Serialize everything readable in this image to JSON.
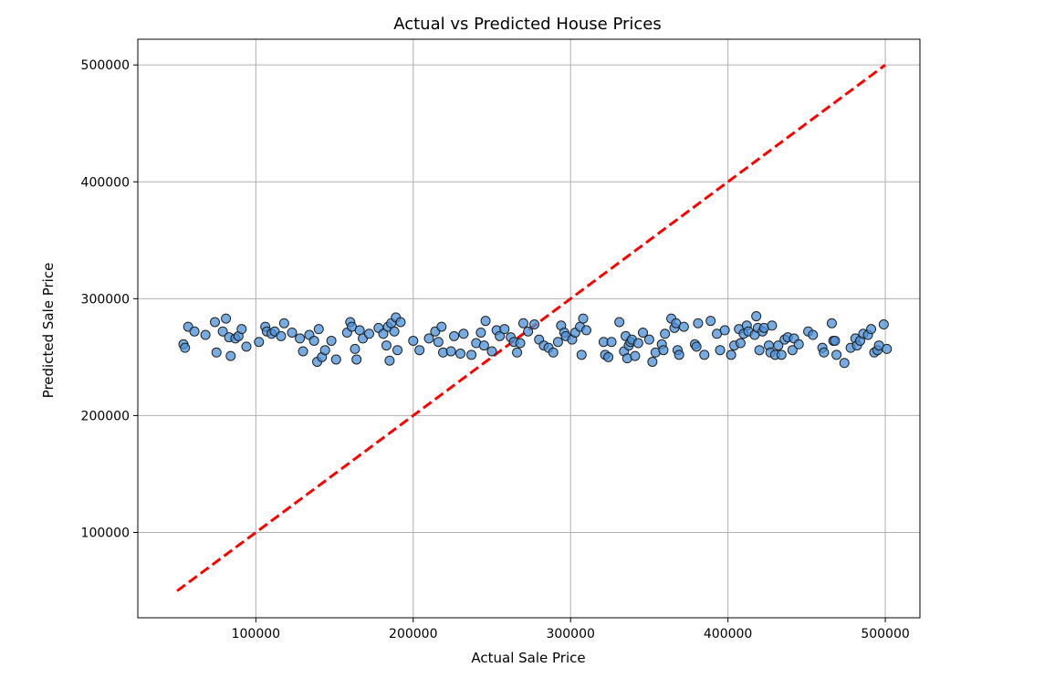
{
  "chart_data": {
    "type": "scatter",
    "title": "Actual vs Predicted House Prices",
    "xlabel": "Actual Sale Price",
    "ylabel": "Predicted Sale Price",
    "xlim": [
      25000,
      522000
    ],
    "ylim": [
      27000,
      522000
    ],
    "xticks": [
      100000,
      200000,
      300000,
      400000,
      500000
    ],
    "yticks": [
      100000,
      200000,
      300000,
      400000,
      500000
    ],
    "xtick_labels": [
      "100000",
      "200000",
      "300000",
      "400000",
      "500000"
    ],
    "ytick_labels": [
      "100000",
      "200000",
      "300000",
      "400000",
      "500000"
    ],
    "grid": true,
    "point_color": "#4a90d9",
    "point_edge_color": "#1f1f1f",
    "line_color": "#ff0000",
    "reference_line": {
      "x": [
        50000,
        500000
      ],
      "y": [
        50000,
        500000
      ],
      "style": "dashed"
    },
    "points": [
      [
        54000,
        261000
      ],
      [
        55000,
        258000
      ],
      [
        57000,
        276000
      ],
      [
        61000,
        272000
      ],
      [
        68000,
        269000
      ],
      [
        74000,
        280000
      ],
      [
        75000,
        254000
      ],
      [
        79000,
        272000
      ],
      [
        81000,
        283000
      ],
      [
        83000,
        267000
      ],
      [
        84000,
        251000
      ],
      [
        87000,
        266000
      ],
      [
        89000,
        268000
      ],
      [
        91000,
        274000
      ],
      [
        94000,
        259000
      ],
      [
        102000,
        263000
      ],
      [
        106000,
        276000
      ],
      [
        107000,
        272000
      ],
      [
        110000,
        270000
      ],
      [
        112000,
        272000
      ],
      [
        116000,
        268000
      ],
      [
        118000,
        279000
      ],
      [
        123000,
        271000
      ],
      [
        128000,
        266000
      ],
      [
        130000,
        255000
      ],
      [
        134000,
        269000
      ],
      [
        137000,
        264000
      ],
      [
        139000,
        246000
      ],
      [
        140000,
        274000
      ],
      [
        142000,
        250000
      ],
      [
        144000,
        256000
      ],
      [
        148000,
        264000
      ],
      [
        151000,
        248000
      ],
      [
        158000,
        271000
      ],
      [
        160000,
        280000
      ],
      [
        161000,
        276000
      ],
      [
        163000,
        257000
      ],
      [
        164000,
        248000
      ],
      [
        166000,
        273000
      ],
      [
        168000,
        266000
      ],
      [
        172000,
        270000
      ],
      [
        178000,
        275000
      ],
      [
        181000,
        270000
      ],
      [
        183000,
        260000
      ],
      [
        184000,
        276000
      ],
      [
        185000,
        247000
      ],
      [
        186000,
        279000
      ],
      [
        188000,
        272000
      ],
      [
        189000,
        284000
      ],
      [
        190000,
        256000
      ],
      [
        192000,
        280000
      ],
      [
        200000,
        264000
      ],
      [
        204000,
        256000
      ],
      [
        210000,
        266000
      ],
      [
        214000,
        272000
      ],
      [
        216000,
        263000
      ],
      [
        218000,
        276000
      ],
      [
        219000,
        254000
      ],
      [
        224000,
        255000
      ],
      [
        226000,
        268000
      ],
      [
        230000,
        253000
      ],
      [
        232000,
        270000
      ],
      [
        237000,
        252000
      ],
      [
        240000,
        262000
      ],
      [
        243000,
        271000
      ],
      [
        245000,
        260000
      ],
      [
        246000,
        281000
      ],
      [
        250000,
        255000
      ],
      [
        253000,
        273000
      ],
      [
        255000,
        268000
      ],
      [
        258000,
        274000
      ],
      [
        262000,
        267000
      ],
      [
        264000,
        263000
      ],
      [
        266000,
        254000
      ],
      [
        268000,
        262000
      ],
      [
        270000,
        279000
      ],
      [
        273000,
        272000
      ],
      [
        277000,
        278000
      ],
      [
        280000,
        265000
      ],
      [
        283000,
        260000
      ],
      [
        286000,
        258000
      ],
      [
        289000,
        254000
      ],
      [
        292000,
        263000
      ],
      [
        294000,
        277000
      ],
      [
        296000,
        271000
      ],
      [
        297000,
        268000
      ],
      [
        301000,
        265000
      ],
      [
        303000,
        271000
      ],
      [
        306000,
        276000
      ],
      [
        307000,
        252000
      ],
      [
        308000,
        283000
      ],
      [
        310000,
        273000
      ],
      [
        321000,
        263000
      ],
      [
        322000,
        252000
      ],
      [
        324000,
        250000
      ],
      [
        326000,
        263000
      ],
      [
        331000,
        280000
      ],
      [
        334000,
        255000
      ],
      [
        335000,
        268000
      ],
      [
        336000,
        249000
      ],
      [
        337000,
        260000
      ],
      [
        338000,
        263000
      ],
      [
        339000,
        265000
      ],
      [
        341000,
        251000
      ],
      [
        343000,
        262000
      ],
      [
        346000,
        271000
      ],
      [
        350000,
        265000
      ],
      [
        352000,
        246000
      ],
      [
        354000,
        254000
      ],
      [
        358000,
        261000
      ],
      [
        359000,
        256000
      ],
      [
        360000,
        270000
      ],
      [
        364000,
        283000
      ],
      [
        366000,
        275000
      ],
      [
        367000,
        279000
      ],
      [
        368000,
        256000
      ],
      [
        369000,
        252000
      ],
      [
        372000,
        276000
      ],
      [
        379000,
        261000
      ],
      [
        380000,
        259000
      ],
      [
        381000,
        279000
      ],
      [
        385000,
        252000
      ],
      [
        389000,
        281000
      ],
      [
        393000,
        270000
      ],
      [
        395000,
        256000
      ],
      [
        398000,
        273000
      ],
      [
        402000,
        252000
      ],
      [
        404000,
        260000
      ],
      [
        407000,
        274000
      ],
      [
        408000,
        262000
      ],
      [
        410000,
        270000
      ],
      [
        412000,
        277000
      ],
      [
        413000,
        272000
      ],
      [
        417000,
        269000
      ],
      [
        418000,
        285000
      ],
      [
        419000,
        275000
      ],
      [
        420000,
        256000
      ],
      [
        422000,
        272000
      ],
      [
        423000,
        275000
      ],
      [
        426000,
        260000
      ],
      [
        427000,
        254000
      ],
      [
        428000,
        277000
      ],
      [
        430000,
        252000
      ],
      [
        432000,
        260000
      ],
      [
        434000,
        252000
      ],
      [
        436000,
        265000
      ],
      [
        438000,
        267000
      ],
      [
        441000,
        256000
      ],
      [
        442000,
        266000
      ],
      [
        445000,
        261000
      ],
      [
        451000,
        272000
      ],
      [
        454000,
        269000
      ],
      [
        460000,
        258000
      ],
      [
        461000,
        254000
      ],
      [
        466000,
        279000
      ],
      [
        467000,
        264000
      ],
      [
        468000,
        264000
      ],
      [
        469000,
        252000
      ],
      [
        474000,
        245000
      ],
      [
        478000,
        258000
      ],
      [
        481000,
        266000
      ],
      [
        482000,
        260000
      ],
      [
        484000,
        264000
      ],
      [
        486000,
        270000
      ],
      [
        489000,
        269000
      ],
      [
        491000,
        274000
      ],
      [
        493000,
        254000
      ],
      [
        495000,
        256000
      ],
      [
        496000,
        260000
      ],
      [
        499000,
        278000
      ],
      [
        501000,
        257000
      ]
    ]
  }
}
